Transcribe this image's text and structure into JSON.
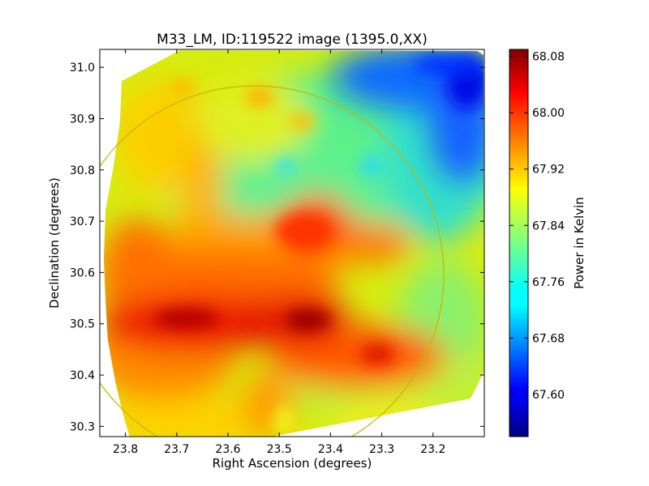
{
  "chart_data": {
    "type": "heatmap",
    "title": "M33_LM, ID:119522 image (1395.0,XX)",
    "xlabel": "Right Ascension (degrees)",
    "ylabel": "Declination (degrees)",
    "xlim": [
      23.85,
      23.1
    ],
    "ylim": [
      30.28,
      31.035
    ],
    "x_ticks": [
      "23.8",
      "23.7",
      "23.6",
      "23.5",
      "23.4",
      "23.3",
      "23.2"
    ],
    "y_ticks": [
      "30.3",
      "30.4",
      "30.5",
      "30.6",
      "30.7",
      "30.8",
      "30.9",
      "31.0"
    ],
    "colorbar": {
      "label": "Power in Kelvin",
      "range": [
        67.54,
        68.09
      ],
      "ticks": [
        "67.60",
        "67.68",
        "67.76",
        "67.84",
        "67.92",
        "68.00",
        "68.08"
      ],
      "colormap": "jet"
    },
    "overlay_circle": {
      "center_ra": 23.545,
      "center_dec": 30.595,
      "radius_deg": 0.365,
      "color": "#c8b400"
    },
    "map_features": [
      {
        "ra": 23.44,
        "dec": 30.51,
        "value": 68.08
      },
      {
        "ra": 23.7,
        "dec": 30.51,
        "value": 68.06
      },
      {
        "ra": 23.3,
        "dec": 30.44,
        "value": 68.01
      },
      {
        "ra": 23.4,
        "dec": 30.67,
        "value": 67.99
      },
      {
        "ra": 23.13,
        "dec": 30.99,
        "value": 67.58
      },
      {
        "ra": 23.31,
        "dec": 30.81,
        "value": 67.74
      }
    ],
    "grid": false,
    "legend": "none"
  }
}
